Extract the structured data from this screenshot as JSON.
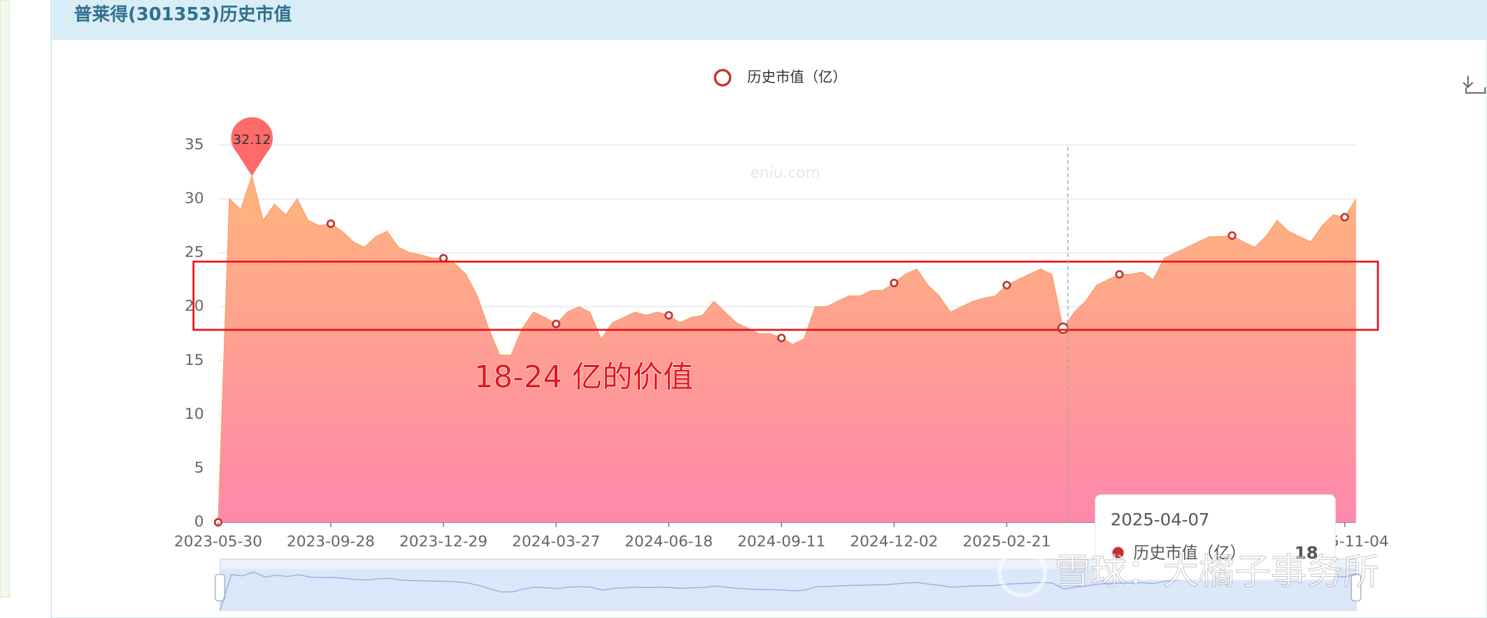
{
  "header": {
    "title": "普莱得(301353)历史市值"
  },
  "chart_data": {
    "type": "area",
    "legend": "历史市值（亿）",
    "categories": [
      "2023-05-30",
      null,
      null,
      null,
      null,
      null,
      null,
      null,
      null,
      null,
      "2023-09-28",
      null,
      null,
      null,
      null,
      null,
      null,
      null,
      null,
      null,
      "2023-12-29",
      null,
      null,
      null,
      null,
      null,
      null,
      null,
      null,
      null,
      "2024-03-27",
      null,
      null,
      null,
      null,
      null,
      null,
      null,
      null,
      null,
      "2024-06-18",
      null,
      null,
      null,
      null,
      null,
      null,
      null,
      null,
      null,
      "2024-09-11",
      null,
      null,
      null,
      null,
      null,
      null,
      null,
      null,
      null,
      "2024-12-02",
      null,
      null,
      null,
      null,
      null,
      null,
      null,
      null,
      null,
      "2025-02-21",
      null,
      null,
      null,
      null,
      null,
      null,
      null,
      null,
      null,
      null,
      null,
      null,
      null,
      null,
      null,
      null,
      null,
      null,
      null,
      null,
      null,
      null,
      null,
      null,
      null,
      null,
      null,
      null,
      null,
      "2025-11-04",
      null
    ],
    "series": [
      {
        "name": "历史市值（亿）",
        "color": "#f5a26a",
        "values": [
          0,
          30,
          29,
          32.12,
          28,
          29.5,
          28.5,
          30,
          28,
          27.5,
          27.7,
          27,
          26,
          25.5,
          26.5,
          27,
          25.5,
          25,
          24.8,
          24.5,
          24.5,
          24,
          23,
          21,
          18,
          15.5,
          15.5,
          18,
          19.5,
          19,
          18.4,
          19.5,
          20,
          19.5,
          17,
          18.5,
          19,
          19.5,
          19.2,
          19.5,
          19.2,
          18.5,
          19,
          19.2,
          20.5,
          19.5,
          18.5,
          18,
          17.5,
          17.5,
          17.1,
          16.5,
          17,
          20,
          20,
          20.5,
          21,
          21,
          21.5,
          21.5,
          22.2,
          23,
          23.5,
          22,
          21,
          19.5,
          20,
          20.5,
          20.8,
          21,
          22,
          22.5,
          23,
          23.5,
          23,
          18,
          19.5,
          20.5,
          22,
          22.5,
          23,
          23,
          23.2,
          22.5,
          24.5,
          25,
          25.5,
          26,
          26.5,
          26.5,
          26.6,
          26,
          25.5,
          26.5,
          28,
          27,
          26.5,
          26,
          27.5,
          28.5,
          28.3,
          30
        ]
      }
    ],
    "ylim": [
      0,
      35
    ],
    "yticks": [
      0,
      5,
      10,
      15,
      20,
      25,
      30,
      35
    ],
    "grid": true,
    "watermark": "eniu.com",
    "annotation": "18-24 亿的价值",
    "tooltip": {
      "date": "2025-04-07",
      "series": "历史市值（亿）",
      "value": 18
    },
    "credit": "雪球：大橘子事务所"
  }
}
